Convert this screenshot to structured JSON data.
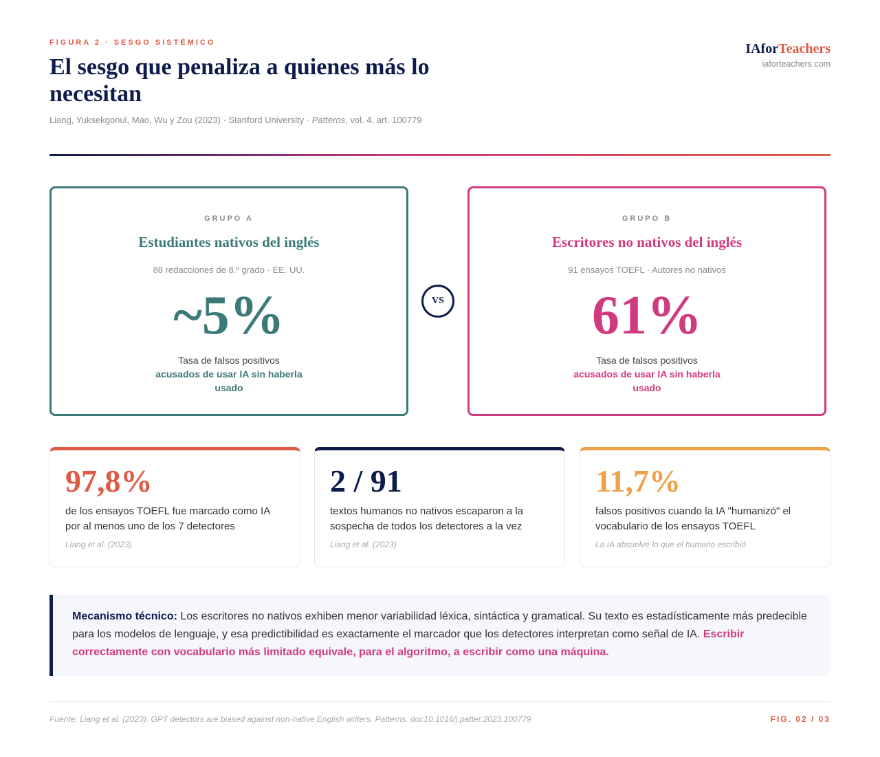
{
  "header": {
    "eyebrow": "FIGURA 2 · SESGO SISTÉMICO",
    "title": "El sesgo que penaliza a quienes más lo necesitan",
    "citation_prefix": "Liang, Yuksekgonul, Mao, Wu y Zou (2023) · Stanford University · ",
    "citation_journal": "Patterns",
    "citation_suffix": ", vol. 4, art. 100779"
  },
  "brand": {
    "logo_part1": "IAfor",
    "logo_part2": "Teachers",
    "url": "iaforteachers.com"
  },
  "groups": [
    {
      "label": "GRUPO A",
      "name": "Estudiantes nativos del inglés",
      "sub": "88 redacciones de 8.º grado · EE. UU.",
      "value": "~5%",
      "desc": "Tasa de falsos positivos",
      "highlight": "acusados de usar IA sin haberla usado",
      "color": "#3c7a78"
    },
    {
      "label": "GRUPO B",
      "name": "Escritores no nativos del inglés",
      "sub": "91 ensayos TOEFL · Autores no nativos",
      "value": "61%",
      "desc": "Tasa de falsos positivos",
      "highlight": "acusados de usar IA sin haberla usado",
      "color": "#d03a7e"
    }
  ],
  "vs_label": "VS",
  "stats": [
    {
      "value": "97,8%",
      "desc": "de los ensayos TOEFL fue marcado como IA por al menos uno de los 7 detectores",
      "source": "Liang et al. (2023)",
      "color": "#e05a45"
    },
    {
      "value": "2 / 91",
      "desc": "textos humanos no nativos escaparon a la sospecha de todos los detectores a la vez",
      "source": "Liang et al. (2023)",
      "color": "#0e1c4b"
    },
    {
      "value": "11,7%",
      "desc": "falsos positivos cuando la IA \"humanizó\" el vocabulario de los ensayos TOEFL",
      "source": "La IA absuelve lo que el humano escribió",
      "color": "#eda24a"
    }
  ],
  "mechanism": {
    "lead": "Mecanismo técnico:",
    "body": " Los escritores no nativos exhiben menor variabilidad léxica, sintáctica y gramatical. Su texto es estadísticamente más predecible para los modelos de lenguaje, y esa predictibilidad es exactamente el marcador que los detectores interpretan como señal de IA. ",
    "highlight": "Escribir correctamente con vocabulario más limitado equivale, para el algoritmo, a escribir como una máquina."
  },
  "footer": {
    "source": "Fuente: Liang et al. (2023). GPT detectors are biased against non-native English writers. Patterns. doi:10.1016/j.patter.2023.100779",
    "fig": "FIG. 02 / 03"
  }
}
